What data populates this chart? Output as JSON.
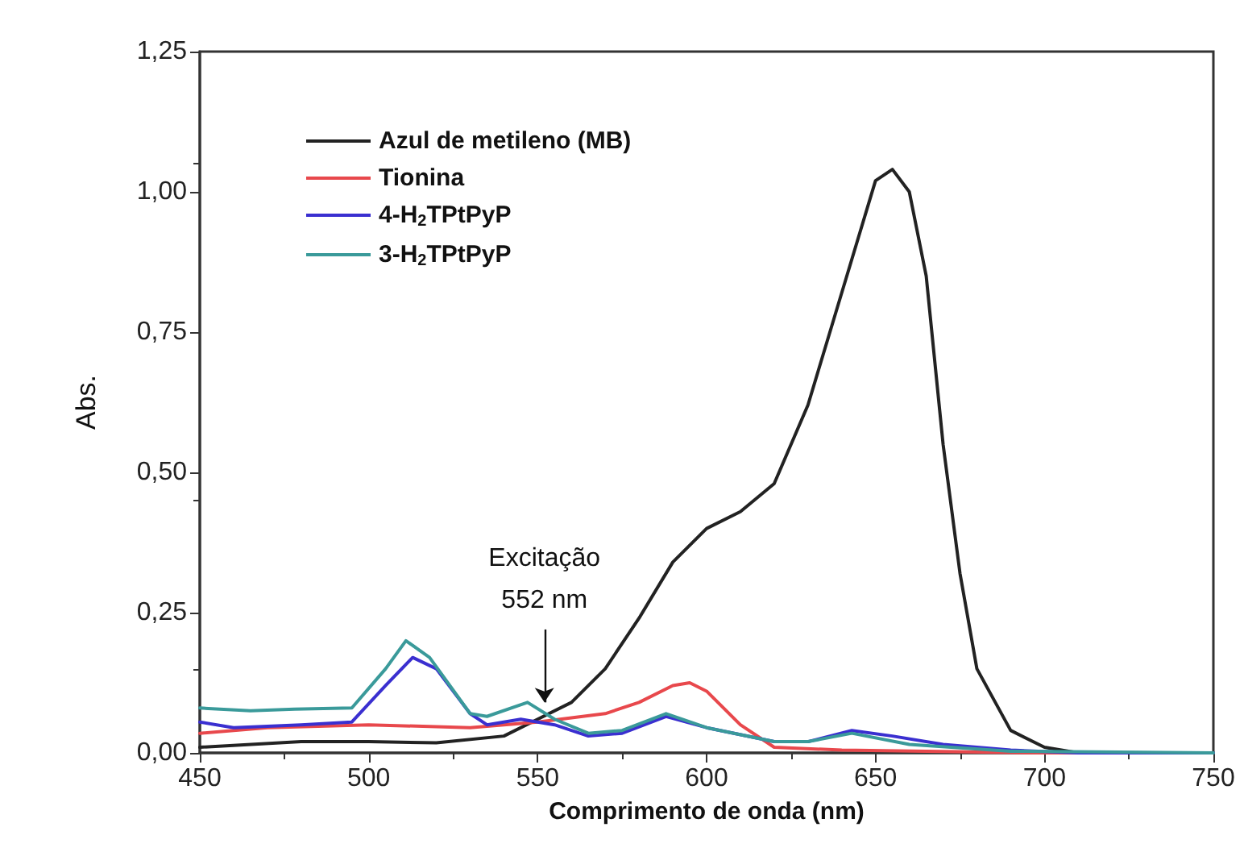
{
  "chart_data": {
    "type": "line",
    "xlabel": "Comprimento de onda (nm)",
    "ylabel": "Abs.",
    "xlim": [
      450,
      750
    ],
    "xticks": [
      450,
      500,
      550,
      600,
      650,
      700,
      750
    ],
    "ylim": [
      0,
      1.25
    ],
    "yticks": [
      {
        "value": 0,
        "label": "0,00"
      },
      {
        "value": 0.25,
        "label": "0,25"
      },
      {
        "value": 0.5,
        "label": "0,50"
      },
      {
        "value": 0.75,
        "label": "0,75"
      },
      {
        "value": 1,
        "label": "1,00"
      },
      {
        "value": 1.25,
        "label": "1,25"
      }
    ],
    "grid": false,
    "legend": "top left",
    "marker": "none",
    "line_style": "solid",
    "annotations": [
      {
        "text": "Excitação\n552 nm",
        "x": 552,
        "y": 0.09
      }
    ],
    "series": [
      {
        "name": "Azul de metileno (MB)",
        "color": "#222222",
        "x": [
          450,
          480,
          500,
          520,
          540,
          550,
          560,
          570,
          580,
          590,
          600,
          610,
          620,
          630,
          640,
          650,
          655,
          660,
          665,
          670,
          675,
          680,
          690,
          700,
          710,
          750
        ],
        "values": [
          0.01,
          0.02,
          0.02,
          0.018,
          0.03,
          0.06,
          0.09,
          0.15,
          0.24,
          0.34,
          0.4,
          0.43,
          0.48,
          0.62,
          0.82,
          1.02,
          1.04,
          1.0,
          0.85,
          0.55,
          0.32,
          0.15,
          0.04,
          0.01,
          0,
          0
        ]
      },
      {
        "name": "Tionina",
        "color": "#e8484c",
        "x": [
          450,
          470,
          500,
          530,
          550,
          570,
          580,
          590,
          595,
          600,
          610,
          620,
          640,
          700,
          750
        ],
        "values": [
          0.035,
          0.045,
          0.05,
          0.045,
          0.055,
          0.07,
          0.09,
          0.12,
          0.125,
          0.11,
          0.05,
          0.01,
          0.005,
          0,
          0
        ]
      },
      {
        "name": "4-H$_{2}$TPtPyP",
        "color": "#3a2fd0",
        "x": [
          450,
          460,
          480,
          495,
          505,
          513,
          520,
          530,
          535,
          545,
          555,
          565,
          575,
          588,
          600,
          620,
          630,
          643,
          655,
          670,
          690,
          710,
          750
        ],
        "values": [
          0.055,
          0.045,
          0.05,
          0.055,
          0.12,
          0.17,
          0.15,
          0.07,
          0.05,
          0.06,
          0.05,
          0.03,
          0.035,
          0.065,
          0.045,
          0.02,
          0.02,
          0.04,
          0.03,
          0.015,
          0.005,
          0,
          0
        ]
      },
      {
        "name": "3-H$_{2}$TPtPyP",
        "color": "#3a9a9a",
        "x": [
          450,
          465,
          478,
          495,
          505,
          511,
          518,
          530,
          535,
          547,
          555,
          565,
          575,
          588,
          600,
          620,
          630,
          643,
          660,
          690,
          750
        ],
        "values": [
          0.08,
          0.075,
          0.078,
          0.08,
          0.15,
          0.2,
          0.17,
          0.07,
          0.065,
          0.09,
          0.06,
          0.035,
          0.04,
          0.07,
          0.045,
          0.02,
          0.02,
          0.035,
          0.015,
          0.003,
          0
        ]
      }
    ]
  }
}
